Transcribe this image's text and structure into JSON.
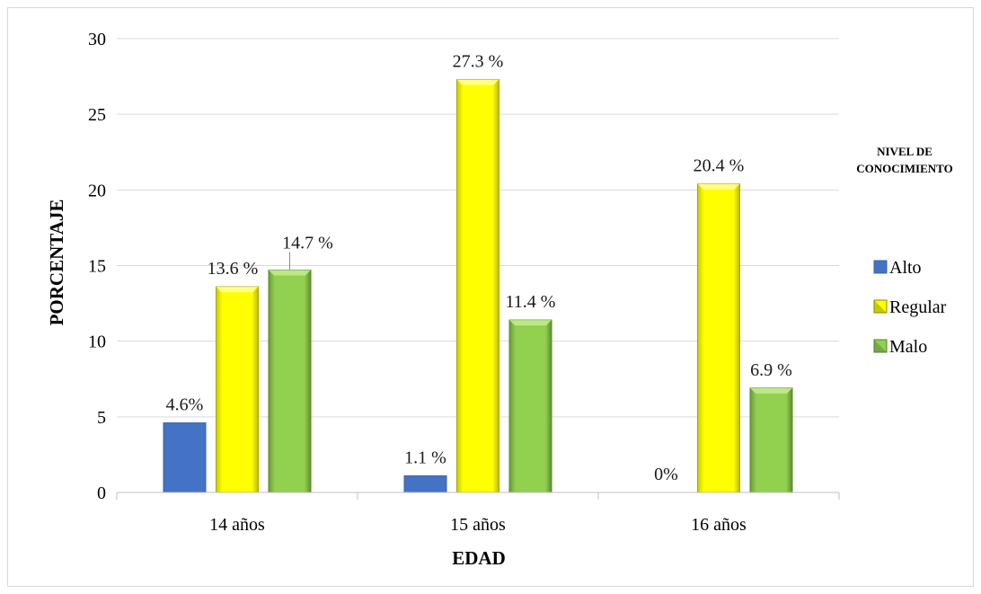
{
  "chart_data": {
    "type": "bar",
    "categories": [
      "14 años",
      "15 años",
      "16 años"
    ],
    "series": [
      {
        "name": "Alto",
        "values": [
          4.6,
          1.1,
          0
        ],
        "labels": [
          "4.6%",
          "1.1 %",
          "0%"
        ],
        "color": "#4472c4"
      },
      {
        "name": "Regular",
        "values": [
          13.6,
          27.3,
          20.4
        ],
        "labels": [
          "13.6 %",
          "27.3 %",
          "20.4 %"
        ],
        "color": "#ffff00"
      },
      {
        "name": "Malo",
        "values": [
          14.7,
          11.4,
          6.9
        ],
        "labels": [
          "14.7 %",
          "11.4 %",
          "6.9 %"
        ],
        "color": "#92d050"
      }
    ],
    "xlabel": "EDAD",
    "ylabel": "PORCENTAJE",
    "ylim": [
      0,
      30
    ],
    "yticks": [
      "0",
      "5",
      "10",
      "15",
      "20",
      "25",
      "30"
    ],
    "legend_title": [
      "NIVEL DE",
      "CONOCIMIENTO"
    ],
    "legend_position": "right",
    "grid": true
  }
}
